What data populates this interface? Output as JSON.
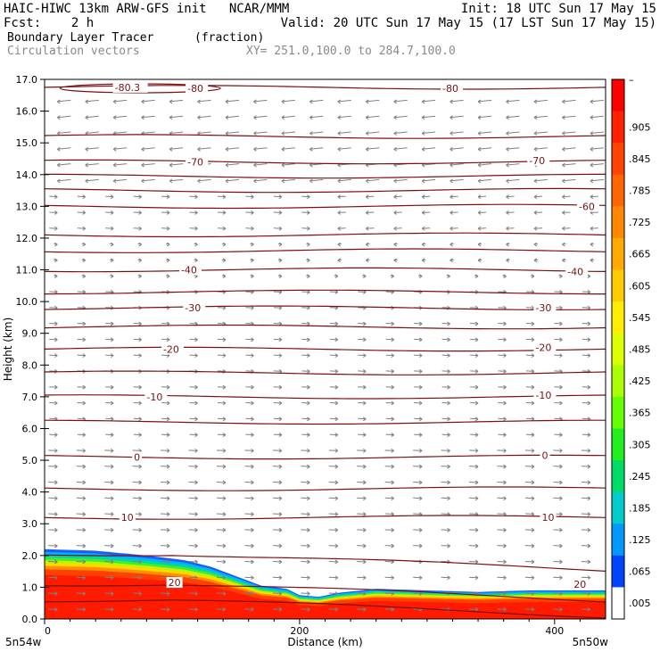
{
  "header": {
    "line1_left": "HAIC-HIWC 13km ARW-GFS init   NCAR/MMM",
    "line1_right": "Init: 18 UTC Sun 17 May 15",
    "line2_left": "Fcst:    2 h",
    "line2_right": "Valid: 20 UTC Sun 17 May 15 (17 LST Sun 17 May 15)",
    "field1": "Boundary Layer Tracer",
    "field1_units": "(fraction)",
    "field2": "Circulation vectors",
    "cross_section": "XY= 251.0,100.0 to 284.7,100.0"
  },
  "colors": {
    "contour": "#7a1010",
    "vector": "#808080",
    "tracer_high": "#ff1a00"
  },
  "chart_data": {
    "type": "heatmap",
    "xlabel": "Distance (km)",
    "ylabel": "Height (km)",
    "xlim": [
      0,
      440
    ],
    "ylim": [
      0,
      17
    ],
    "x_ticks": [
      0,
      200,
      400
    ],
    "y_ticks": [
      "0.0",
      "1.0",
      "2.0",
      "3.0",
      "4.0",
      "5.0",
      "6.0",
      "7.0",
      "8.0",
      "9.0",
      "10.0",
      "11.0",
      "12.0",
      "13.0",
      "14.0",
      "15.0",
      "16.0",
      "17.0"
    ],
    "x_endpoint_left": "5n54w",
    "x_endpoint_right": "5n50w",
    "colorbar": {
      "labels": [
        "–",
        ".905",
        ".845",
        ".785",
        ".725",
        ".665",
        ".605",
        ".545",
        ".485",
        ".425",
        ".365",
        ".305",
        ".245",
        ".185",
        ".125",
        ".065",
        ".005"
      ],
      "colors": [
        "#ff0000",
        "#ff2200",
        "#ff4400",
        "#ff6600",
        "#ff8800",
        "#ffaa00",
        "#ffcc00",
        "#ffee00",
        "#ddff00",
        "#aaff00",
        "#66ff00",
        "#22ee22",
        "#00dd66",
        "#00cccc",
        "#0099ff",
        "#0044ff",
        "#ffffff"
      ]
    },
    "tracer_top_km": [
      [
        0,
        2.2
      ],
      [
        40,
        2.15
      ],
      [
        80,
        2.0
      ],
      [
        110,
        1.85
      ],
      [
        130,
        1.65
      ],
      [
        150,
        1.35
      ],
      [
        170,
        1.05
      ],
      [
        190,
        0.95
      ],
      [
        200,
        0.75
      ],
      [
        215,
        0.7
      ],
      [
        230,
        0.82
      ],
      [
        260,
        0.95
      ],
      [
        300,
        0.9
      ],
      [
        340,
        0.85
      ],
      [
        380,
        0.9
      ],
      [
        440,
        0.9
      ]
    ],
    "temperature_contours": [
      {
        "label": "-80.3",
        "height_km": 16.75
      },
      {
        "label": "-80",
        "height_km": 16.7
      },
      {
        "label": "-70",
        "height_km": 14.4
      },
      {
        "label": "-60",
        "height_km": 13.0
      },
      {
        "label": "-40",
        "height_km": 11.0
      },
      {
        "label": "-30",
        "height_km": 9.8
      },
      {
        "label": "-20",
        "height_km": 8.5
      },
      {
        "label": "-10",
        "height_km": 7.0
      },
      {
        "label": "0",
        "height_km": 5.1
      },
      {
        "label": "10",
        "height_km": 3.2
      },
      {
        "label": "20",
        "height_km": 1.1
      }
    ],
    "contour_levels_km": [
      16.75,
      15.2,
      14.4,
      13.95,
      13.5,
      13.0,
      12.1,
      11.6,
      11.0,
      10.3,
      9.8,
      9.2,
      8.5,
      7.75,
      7.0,
      6.2,
      5.1,
      4.1,
      3.2,
      2.05,
      1.1,
      0.6
    ]
  }
}
